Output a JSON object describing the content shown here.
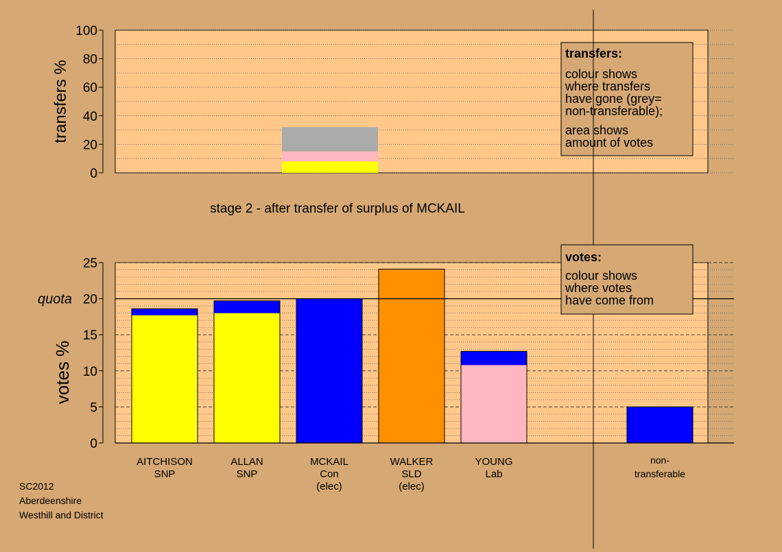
{
  "chart_data": [
    {
      "type": "bar",
      "stacked": true,
      "ylabel": "transfers %",
      "ylim": [
        0,
        100
      ],
      "yticks": [
        0,
        20,
        40,
        60,
        80,
        100
      ],
      "grid": true,
      "caption": "stage 2 - after transfer of surplus of MCKAIL",
      "categories": [
        "MCKAIL"
      ],
      "series": [
        {
          "color": "#ffff00",
          "values": [
            8
          ]
        },
        {
          "color": "#ffb6c1",
          "values": [
            7
          ]
        },
        {
          "color": "#aaaaaa",
          "values": [
            17
          ]
        }
      ],
      "legend": {
        "title": "transfers:",
        "lines": [
          "colour shows",
          "where transfers",
          "have gone (grey=",
          "non-transferable);",
          "area shows",
          "amount of votes"
        ],
        "placement": "top-right"
      }
    },
    {
      "type": "bar",
      "stacked": true,
      "ylabel": "votes %",
      "ylim": [
        0,
        25
      ],
      "yticks": [
        0,
        5,
        10,
        15,
        20,
        25
      ],
      "quota": {
        "value": 20,
        "label": "quota"
      },
      "grid": true,
      "categories": [
        {
          "name": "AITCHISON",
          "party": "SNP",
          "status": ""
        },
        {
          "name": "ALLAN",
          "party": "SNP",
          "status": ""
        },
        {
          "name": "MCKAIL",
          "party": "Con",
          "status": "(elec)"
        },
        {
          "name": "WALKER",
          "party": "SLD",
          "status": "(elec)"
        },
        {
          "name": "YOUNG",
          "party": "Lab",
          "status": ""
        }
      ],
      "bars": [
        {
          "segments": [
            {
              "value": 17.7,
              "color": "#ffff00"
            },
            {
              "value": 0.9,
              "color": "#0000ff"
            }
          ]
        },
        {
          "segments": [
            {
              "value": 18.0,
              "color": "#ffff00"
            },
            {
              "value": 1.7,
              "color": "#0000ff"
            }
          ]
        },
        {
          "segments": [
            {
              "value": 20.0,
              "color": "#0000ff"
            }
          ]
        },
        {
          "segments": [
            {
              "value": 24.1,
              "color": "#ff9000"
            }
          ]
        },
        {
          "segments": [
            {
              "value": 10.8,
              "color": "#ffb6c1"
            },
            {
              "value": 1.9,
              "color": "#0000ff"
            }
          ]
        }
      ],
      "nontransferable": {
        "label": [
          "non-",
          "transferable"
        ],
        "segments": [
          {
            "value": 5.0,
            "color": "#0000ff"
          }
        ]
      },
      "legend": {
        "title": "votes:",
        "lines": [
          "colour shows",
          "where votes",
          "have come from"
        ],
        "placement": "top-right"
      }
    }
  ],
  "footer": {
    "line1": "SC2012",
    "line2": "Aberdeenshire",
    "line3": "Westhill and District"
  }
}
